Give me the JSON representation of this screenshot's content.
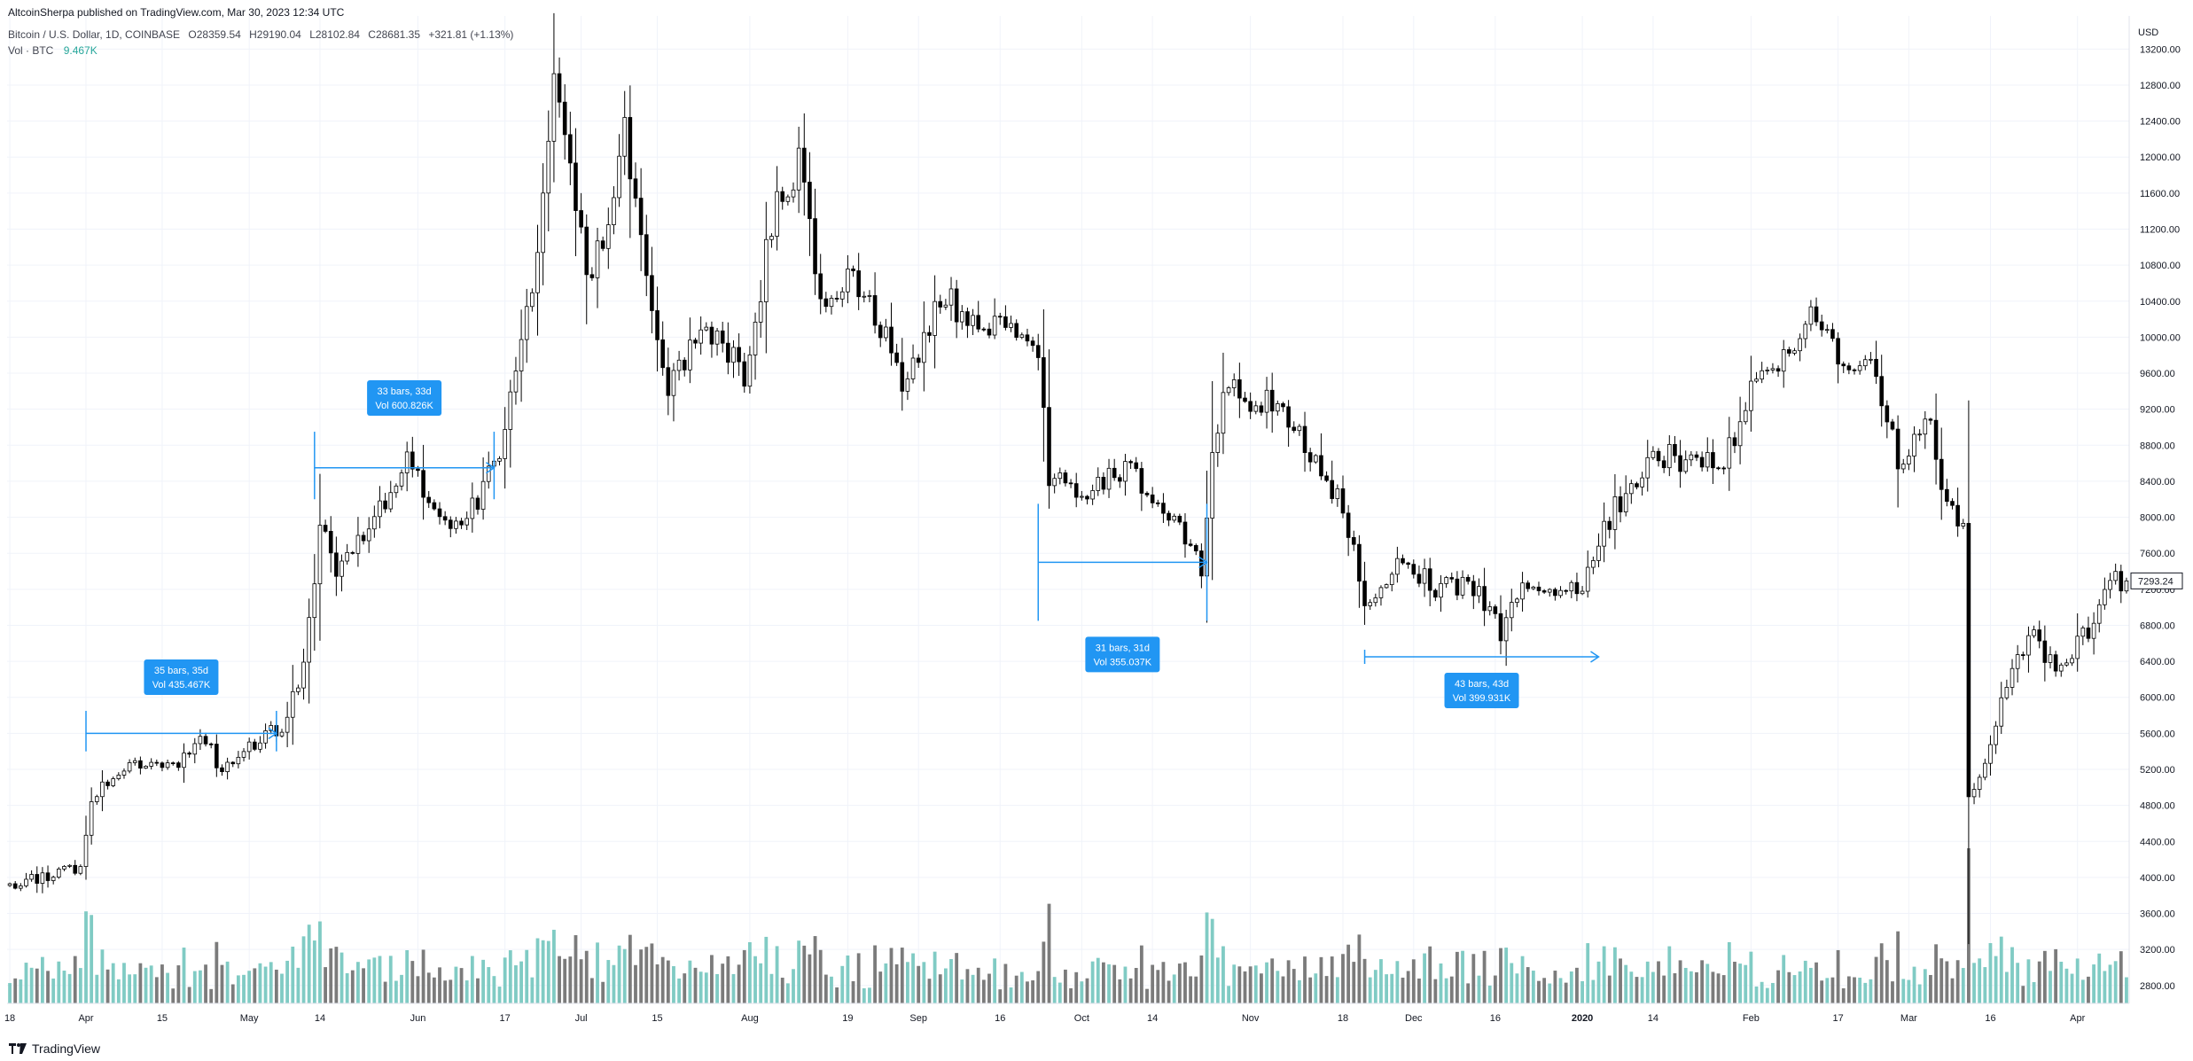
{
  "header": {
    "published": "AltcoinSherpa published on TradingView.com, Mar 30, 2023 12:34 UTC",
    "symbol": "Bitcoin / U.S. Dollar, 1D, COINBASE",
    "open": "O28359.54",
    "high": "H29190.04",
    "low": "L28102.84",
    "close": "C28681.35",
    "change": "+321.81 (+1.13%)",
    "vol_label": "Vol · BTC",
    "vol_value": "9.467K"
  },
  "brand": {
    "name": "TradingView",
    "icon": "tradingview-logo-icon"
  },
  "price_axis": {
    "currency": "USD",
    "last_price_label": "7293.24",
    "last_price": 7293.24
  },
  "colors": {
    "grid": "#f0f3fa",
    "candle_up_body": "#ffffff",
    "candle_down_body": "#000000",
    "wick": "#000000",
    "vol_up": "#80cbc4",
    "vol_down": "#7b7b7b",
    "measure": "#2196f3",
    "measure_box": "#2196f3"
  },
  "chart_data": {
    "type": "candlestick",
    "title": "Bitcoin / U.S. Dollar, 1D, COINBASE",
    "y_axis": {
      "ylim": [
        2600,
        13800
      ],
      "ticks": [
        2800,
        3200,
        3600,
        4000,
        4400,
        4800,
        5200,
        5600,
        6000,
        6400,
        6800,
        7200,
        7600,
        8000,
        8400,
        8800,
        9200,
        9600,
        10000,
        10400,
        10800,
        11200,
        11600,
        12000,
        12400,
        12800,
        13200
      ],
      "tick_labels": [
        "2800.00",
        "3200.00",
        "3600.00",
        "4000.00",
        "4400.00",
        "4800.00",
        "5200.00",
        "5600.00",
        "6000.00",
        "6400.00",
        "6800.00",
        "7200.00",
        "7600.00",
        "8000.00",
        "8400.00",
        "8800.00",
        "9200.00",
        "9600.00",
        "10000.00",
        "10400.00",
        "10800.00",
        "11200.00",
        "11600.00",
        "12000.00",
        "12400.00",
        "12800.00",
        "13200.00"
      ]
    },
    "x_axis": {
      "start_date": "2019-03-18",
      "end_date": "2020-04-10",
      "ticks": [
        {
          "date": "2019-03-18",
          "label": "18"
        },
        {
          "date": "2019-04-01",
          "label": "Apr"
        },
        {
          "date": "2019-04-15",
          "label": "15"
        },
        {
          "date": "2019-05-01",
          "label": "May"
        },
        {
          "date": "2019-05-14",
          "label": "14"
        },
        {
          "date": "2019-06-01",
          "label": "Jun"
        },
        {
          "date": "2019-06-17",
          "label": "17"
        },
        {
          "date": "2019-07-01",
          "label": "Jul"
        },
        {
          "date": "2019-07-15",
          "label": "15"
        },
        {
          "date": "2019-08-01",
          "label": "Aug"
        },
        {
          "date": "2019-08-19",
          "label": "19"
        },
        {
          "date": "2019-09-01",
          "label": "Sep"
        },
        {
          "date": "2019-09-16",
          "label": "16"
        },
        {
          "date": "2019-10-01",
          "label": "Oct"
        },
        {
          "date": "2019-10-14",
          "label": "14"
        },
        {
          "date": "2019-11-01",
          "label": "Nov"
        },
        {
          "date": "2019-11-18",
          "label": "18"
        },
        {
          "date": "2019-12-01",
          "label": "Dec"
        },
        {
          "date": "2019-12-16",
          "label": "16"
        },
        {
          "date": "2020-01-01",
          "label": "2020"
        },
        {
          "date": "2020-01-14",
          "label": "14"
        },
        {
          "date": "2020-02-01",
          "label": "Feb"
        },
        {
          "date": "2020-02-17",
          "label": "17"
        },
        {
          "date": "2020-03-01",
          "label": "Mar"
        },
        {
          "date": "2020-03-16",
          "label": "16"
        },
        {
          "date": "2020-04-01",
          "label": "Apr"
        }
      ]
    },
    "price_anchors": [
      {
        "date": "2019-03-18",
        "close": 3930
      },
      {
        "date": "2019-03-31",
        "close": 4100
      },
      {
        "date": "2019-04-02",
        "close": 4880
      },
      {
        "date": "2019-04-10",
        "close": 5280
      },
      {
        "date": "2019-04-17",
        "close": 5230
      },
      {
        "date": "2019-04-23",
        "close": 5520
      },
      {
        "date": "2019-04-26",
        "close": 5190
      },
      {
        "date": "2019-05-07",
        "close": 5700
      },
      {
        "date": "2019-05-11",
        "close": 6350
      },
      {
        "date": "2019-05-14",
        "close": 7900
      },
      {
        "date": "2019-05-17",
        "close": 7360
      },
      {
        "date": "2019-05-25",
        "close": 8050
      },
      {
        "date": "2019-05-30",
        "close": 8680
      },
      {
        "date": "2019-06-03",
        "close": 8200
      },
      {
        "date": "2019-06-07",
        "close": 7950
      },
      {
        "date": "2019-06-12",
        "close": 8200
      },
      {
        "date": "2019-06-17",
        "close": 8950
      },
      {
        "date": "2019-06-22",
        "close": 10500
      },
      {
        "date": "2019-06-26",
        "close": 12950
      },
      {
        "date": "2019-06-28",
        "close": 12400
      },
      {
        "date": "2019-07-02",
        "close": 10600
      },
      {
        "date": "2019-07-06",
        "close": 11300
      },
      {
        "date": "2019-07-09",
        "close": 12350
      },
      {
        "date": "2019-07-14",
        "close": 10250
      },
      {
        "date": "2019-07-17",
        "close": 9400
      },
      {
        "date": "2019-07-23",
        "close": 10100
      },
      {
        "date": "2019-07-31",
        "close": 9600
      },
      {
        "date": "2019-08-06",
        "close": 11550
      },
      {
        "date": "2019-08-10",
        "close": 11900
      },
      {
        "date": "2019-08-15",
        "close": 10200
      },
      {
        "date": "2019-08-20",
        "close": 10750
      },
      {
        "date": "2019-08-29",
        "close": 9550
      },
      {
        "date": "2019-09-06",
        "close": 10450
      },
      {
        "date": "2019-09-10",
        "close": 10200
      },
      {
        "date": "2019-09-18",
        "close": 10150
      },
      {
        "date": "2019-09-23",
        "close": 9700
      },
      {
        "date": "2019-09-25",
        "close": 8450
      },
      {
        "date": "2019-10-01",
        "close": 8300
      },
      {
        "date": "2019-10-09",
        "close": 8550
      },
      {
        "date": "2019-10-22",
        "close": 7650
      },
      {
        "date": "2019-10-23",
        "close": 7450
      },
      {
        "date": "2019-10-25",
        "close": 8650
      },
      {
        "date": "2019-10-27",
        "close": 9400
      },
      {
        "date": "2019-11-04",
        "close": 9300
      },
      {
        "date": "2019-11-12",
        "close": 8750
      },
      {
        "date": "2019-11-18",
        "close": 8150
      },
      {
        "date": "2019-11-22",
        "close": 7000
      },
      {
        "date": "2019-11-25",
        "close": 7200
      },
      {
        "date": "2019-11-29",
        "close": 7500
      },
      {
        "date": "2019-12-05",
        "close": 7200
      },
      {
        "date": "2019-12-12",
        "close": 7250
      },
      {
        "date": "2019-12-17",
        "close": 6700
      },
      {
        "date": "2019-12-20",
        "close": 7200
      },
      {
        "date": "2019-12-31",
        "close": 7150
      },
      {
        "date": "2020-01-07",
        "close": 8100
      },
      {
        "date": "2020-01-14",
        "close": 8700
      },
      {
        "date": "2020-01-26",
        "close": 8550
      },
      {
        "date": "2020-02-01",
        "close": 9350
      },
      {
        "date": "2020-02-08",
        "close": 9800
      },
      {
        "date": "2020-02-13",
        "close": 10300
      },
      {
        "date": "2020-02-18",
        "close": 9700
      },
      {
        "date": "2020-02-23",
        "close": 9900
      },
      {
        "date": "2020-02-28",
        "close": 8600
      },
      {
        "date": "2020-03-05",
        "close": 9050
      },
      {
        "date": "2020-03-08",
        "close": 8100
      },
      {
        "date": "2020-03-11",
        "close": 7900
      },
      {
        "date": "2020-03-12",
        "close": 4850
      },
      {
        "date": "2020-03-15",
        "close": 5350
      },
      {
        "date": "2020-03-19",
        "close": 6200
      },
      {
        "date": "2020-03-24",
        "close": 6700
      },
      {
        "date": "2020-03-28",
        "close": 6250
      },
      {
        "date": "2020-04-04",
        "close": 6850
      },
      {
        "date": "2020-04-08",
        "close": 7300
      },
      {
        "date": "2020-04-10",
        "close": 7293
      }
    ],
    "volume": {
      "unit": "BTC",
      "last": "9.467K"
    },
    "measurements": [
      {
        "bars_label": "35 bars, 35d",
        "vol_label": "Vol 435.467K",
        "start": "2019-04-01",
        "end": "2019-05-06",
        "price": 5600,
        "price_top": 5850,
        "price_bottom": 5400,
        "label_position": "above"
      },
      {
        "bars_label": "33 bars, 33d",
        "vol_label": "Vol 600.826K",
        "start": "2019-05-13",
        "end": "2019-06-15",
        "price": 8550,
        "price_top": 8950,
        "price_bottom": 8200,
        "label_position": "above"
      },
      {
        "bars_label": "31 bars, 31d",
        "vol_label": "Vol 355.037K",
        "start": "2019-09-23",
        "end": "2019-10-24",
        "price": 7500,
        "price_top": 8150,
        "price_bottom": 6850,
        "label_position": "below"
      },
      {
        "bars_label": "43 bars, 43d",
        "vol_label": "Vol 399.931K",
        "start": "2019-11-22",
        "end": "2020-01-04",
        "price": 6450,
        "price_top": 6450,
        "price_bottom": 6450,
        "label_position": "below"
      }
    ]
  }
}
